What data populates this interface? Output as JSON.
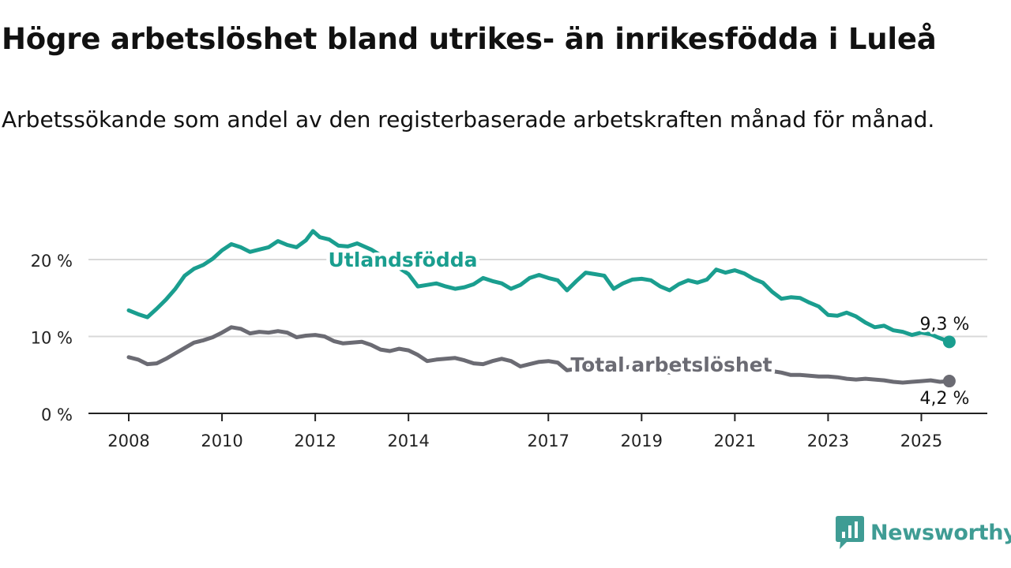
{
  "title": "Högre arbetslöshet bland utrikes- än inrikesfödda i Luleå",
  "subtitle": "Arbetssökande som andel av den registerbaserade arbetskraften månad för månad.",
  "brand": {
    "name": "Newsworthy",
    "logo_icon": "newsworthy-logo-icon",
    "color": "#3f9c94"
  },
  "chart_data": {
    "type": "line",
    "y_ticks": [
      "0 %",
      "10 %",
      "20 %"
    ],
    "y_tick_values": [
      0,
      10,
      20
    ],
    "x_ticks": [
      "2008",
      "2010",
      "2012",
      "2014",
      "2017",
      "2019",
      "2021",
      "2023",
      "2025"
    ],
    "x_tick_values": [
      2008,
      2010,
      2012,
      2014,
      2017,
      2019,
      2021,
      2023,
      2025
    ],
    "xlim": [
      2008,
      2025.5
    ],
    "ylim": [
      0,
      24
    ],
    "grid": true,
    "series": [
      {
        "name": "Utlandsfödda",
        "color": "#1a9e8f",
        "end_label": "9,3 %",
        "points": [
          [
            2008.0,
            13.4
          ],
          [
            2008.2,
            12.9
          ],
          [
            2008.4,
            12.5
          ],
          [
            2008.6,
            13.6
          ],
          [
            2008.8,
            14.8
          ],
          [
            2009.0,
            16.2
          ],
          [
            2009.2,
            17.9
          ],
          [
            2009.4,
            18.8
          ],
          [
            2009.6,
            19.3
          ],
          [
            2009.8,
            20.1
          ],
          [
            2010.0,
            21.2
          ],
          [
            2010.2,
            22.0
          ],
          [
            2010.4,
            21.6
          ],
          [
            2010.6,
            21.0
          ],
          [
            2010.8,
            21.3
          ],
          [
            2011.0,
            21.6
          ],
          [
            2011.2,
            22.4
          ],
          [
            2011.4,
            21.9
          ],
          [
            2011.6,
            21.6
          ],
          [
            2011.8,
            22.5
          ],
          [
            2011.95,
            23.7
          ],
          [
            2012.1,
            22.9
          ],
          [
            2012.3,
            22.6
          ],
          [
            2012.5,
            21.8
          ],
          [
            2012.7,
            21.7
          ],
          [
            2012.9,
            22.1
          ],
          [
            2013.2,
            21.3
          ],
          [
            2013.5,
            20.2
          ],
          [
            2013.8,
            18.9
          ],
          [
            2014.0,
            18.1
          ],
          [
            2014.2,
            16.5
          ],
          [
            2014.4,
            16.7
          ],
          [
            2014.6,
            16.9
          ],
          [
            2014.8,
            16.5
          ],
          [
            2015.0,
            16.2
          ],
          [
            2015.2,
            16.4
          ],
          [
            2015.4,
            16.8
          ],
          [
            2015.6,
            17.6
          ],
          [
            2015.8,
            17.2
          ],
          [
            2016.0,
            16.9
          ],
          [
            2016.2,
            16.2
          ],
          [
            2016.4,
            16.7
          ],
          [
            2016.6,
            17.6
          ],
          [
            2016.8,
            18.0
          ],
          [
            2017.0,
            17.6
          ],
          [
            2017.2,
            17.3
          ],
          [
            2017.4,
            16.0
          ],
          [
            2017.6,
            17.2
          ],
          [
            2017.8,
            18.3
          ],
          [
            2018.0,
            18.1
          ],
          [
            2018.2,
            17.9
          ],
          [
            2018.4,
            16.2
          ],
          [
            2018.6,
            16.9
          ],
          [
            2018.8,
            17.4
          ],
          [
            2019.0,
            17.5
          ],
          [
            2019.2,
            17.3
          ],
          [
            2019.4,
            16.5
          ],
          [
            2019.6,
            16.0
          ],
          [
            2019.8,
            16.8
          ],
          [
            2020.0,
            17.3
          ],
          [
            2020.2,
            17.0
          ],
          [
            2020.4,
            17.4
          ],
          [
            2020.6,
            18.7
          ],
          [
            2020.8,
            18.3
          ],
          [
            2021.0,
            18.6
          ],
          [
            2021.2,
            18.2
          ],
          [
            2021.4,
            17.5
          ],
          [
            2021.6,
            17.0
          ],
          [
            2021.8,
            15.8
          ],
          [
            2022.0,
            14.9
          ],
          [
            2022.2,
            15.1
          ],
          [
            2022.4,
            15.0
          ],
          [
            2022.6,
            14.4
          ],
          [
            2022.8,
            13.9
          ],
          [
            2023.0,
            12.8
          ],
          [
            2023.2,
            12.7
          ],
          [
            2023.4,
            13.1
          ],
          [
            2023.6,
            12.6
          ],
          [
            2023.8,
            11.8
          ],
          [
            2024.0,
            11.2
          ],
          [
            2024.2,
            11.4
          ],
          [
            2024.4,
            10.8
          ],
          [
            2024.6,
            10.6
          ],
          [
            2024.8,
            10.2
          ],
          [
            2025.0,
            10.5
          ],
          [
            2025.2,
            10.3
          ],
          [
            2025.35,
            9.9
          ],
          [
            2025.6,
            9.3
          ]
        ]
      },
      {
        "name": "Total arbetslöshet",
        "color": "#6b6b73",
        "end_label": "4,2 %",
        "points": [
          [
            2008.0,
            7.3
          ],
          [
            2008.2,
            7.0
          ],
          [
            2008.4,
            6.4
          ],
          [
            2008.6,
            6.5
          ],
          [
            2008.8,
            7.1
          ],
          [
            2009.0,
            7.8
          ],
          [
            2009.2,
            8.5
          ],
          [
            2009.4,
            9.2
          ],
          [
            2009.6,
            9.5
          ],
          [
            2009.8,
            9.9
          ],
          [
            2010.0,
            10.5
          ],
          [
            2010.2,
            11.2
          ],
          [
            2010.4,
            11.0
          ],
          [
            2010.6,
            10.4
          ],
          [
            2010.8,
            10.6
          ],
          [
            2011.0,
            10.5
          ],
          [
            2011.2,
            10.7
          ],
          [
            2011.4,
            10.5
          ],
          [
            2011.6,
            9.9
          ],
          [
            2011.8,
            10.1
          ],
          [
            2012.0,
            10.2
          ],
          [
            2012.2,
            10.0
          ],
          [
            2012.4,
            9.4
          ],
          [
            2012.6,
            9.1
          ],
          [
            2012.8,
            9.2
          ],
          [
            2013.0,
            9.3
          ],
          [
            2013.2,
            8.9
          ],
          [
            2013.4,
            8.3
          ],
          [
            2013.6,
            8.1
          ],
          [
            2013.8,
            8.4
          ],
          [
            2014.0,
            8.2
          ],
          [
            2014.2,
            7.6
          ],
          [
            2014.4,
            6.8
          ],
          [
            2014.6,
            7.0
          ],
          [
            2014.8,
            7.1
          ],
          [
            2015.0,
            7.2
          ],
          [
            2015.2,
            6.9
          ],
          [
            2015.4,
            6.5
          ],
          [
            2015.6,
            6.4
          ],
          [
            2015.8,
            6.8
          ],
          [
            2016.0,
            7.1
          ],
          [
            2016.2,
            6.8
          ],
          [
            2016.4,
            6.1
          ],
          [
            2016.6,
            6.4
          ],
          [
            2016.8,
            6.7
          ],
          [
            2017.0,
            6.8
          ],
          [
            2017.2,
            6.6
          ],
          [
            2017.4,
            5.6
          ],
          [
            2017.6,
            5.8
          ],
          [
            2017.8,
            6.2
          ],
          [
            2018.0,
            6.3
          ],
          [
            2018.2,
            6.1
          ],
          [
            2018.4,
            5.5
          ],
          [
            2018.6,
            5.9
          ],
          [
            2018.8,
            6.1
          ],
          [
            2019.0,
            6.0
          ],
          [
            2019.2,
            5.9
          ],
          [
            2019.4,
            5.5
          ],
          [
            2019.6,
            5.3
          ],
          [
            2019.8,
            5.8
          ],
          [
            2020.0,
            6.2
          ],
          [
            2020.2,
            6.3
          ],
          [
            2020.4,
            6.6
          ],
          [
            2020.6,
            6.9
          ],
          [
            2020.8,
            6.7
          ],
          [
            2021.0,
            6.5
          ],
          [
            2021.2,
            6.2
          ],
          [
            2021.4,
            5.9
          ],
          [
            2021.6,
            5.7
          ],
          [
            2021.8,
            5.5
          ],
          [
            2022.0,
            5.3
          ],
          [
            2022.2,
            5.0
          ],
          [
            2022.4,
            5.0
          ],
          [
            2022.6,
            4.9
          ],
          [
            2022.8,
            4.8
          ],
          [
            2023.0,
            4.8
          ],
          [
            2023.2,
            4.7
          ],
          [
            2023.4,
            4.5
          ],
          [
            2023.6,
            4.4
          ],
          [
            2023.8,
            4.5
          ],
          [
            2024.0,
            4.4
          ],
          [
            2024.2,
            4.3
          ],
          [
            2024.4,
            4.1
          ],
          [
            2024.6,
            4.0
          ],
          [
            2024.8,
            4.1
          ],
          [
            2025.0,
            4.2
          ],
          [
            2025.2,
            4.3
          ],
          [
            2025.4,
            4.1
          ],
          [
            2025.6,
            4.2
          ]
        ]
      }
    ]
  }
}
